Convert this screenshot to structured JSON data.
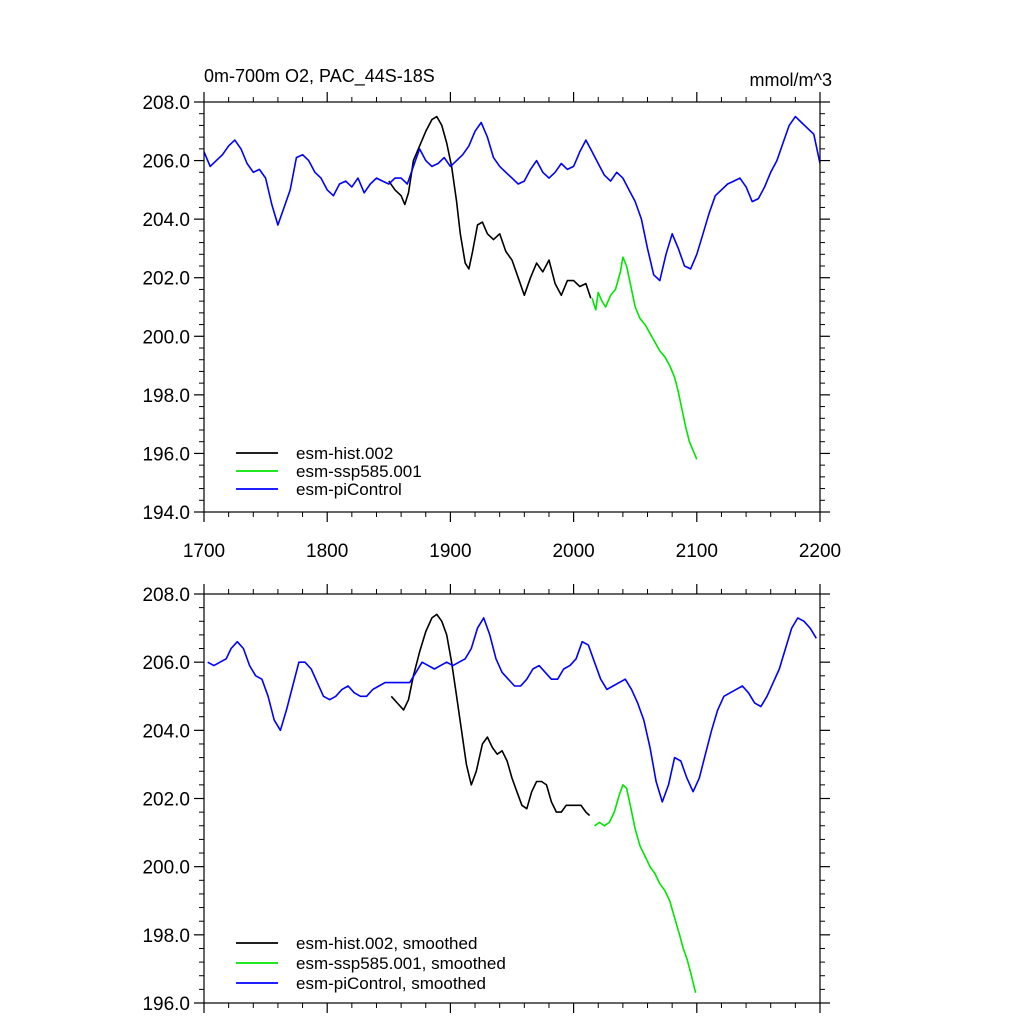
{
  "chart_data": [
    {
      "type": "line",
      "title": "0m-700m O2, PAC_44S-18S",
      "units": "mmol/m^3",
      "xlim": [
        1700,
        2200
      ],
      "ylim": [
        194,
        208
      ],
      "xticks": [
        1700,
        1800,
        1900,
        2000,
        2100,
        2200
      ],
      "xtick_labels": [
        "1700",
        "1800",
        "1900",
        "2000",
        "2100",
        "2200"
      ],
      "yticks": [
        194,
        196,
        198,
        200,
        202,
        204,
        206,
        208
      ],
      "ytick_labels": [
        "194.0",
        "196.0",
        "198.0",
        "200.0",
        "202.0",
        "204.0",
        "206.0",
        "208.0"
      ],
      "legend_position": "bottom-left",
      "series": [
        {
          "name": "esm-hist.002",
          "color": "#000000",
          "x": [
            1850,
            1855,
            1860,
            1863,
            1866,
            1870,
            1875,
            1880,
            1885,
            1889,
            1893,
            1897,
            1901,
            1905,
            1908,
            1912,
            1915,
            1918,
            1922,
            1926,
            1930,
            1935,
            1940,
            1945,
            1950,
            1955,
            1960,
            1965,
            1970,
            1975,
            1980,
            1985,
            1990,
            1995,
            2000,
            2005,
            2010,
            2014
          ],
          "y": [
            205.3,
            205.0,
            204.8,
            204.5,
            204.9,
            206.0,
            206.5,
            207.0,
            207.4,
            207.5,
            207.2,
            206.6,
            205.8,
            204.6,
            203.5,
            202.5,
            202.3,
            202.9,
            203.8,
            203.9,
            203.5,
            203.3,
            203.5,
            202.9,
            202.6,
            202.0,
            201.4,
            202.0,
            202.5,
            202.2,
            202.6,
            201.8,
            201.4,
            201.9,
            201.9,
            201.7,
            201.8,
            201.3
          ]
        },
        {
          "name": "esm-ssp585.001",
          "color": "#00e600",
          "x": [
            2015,
            2018,
            2020,
            2023,
            2026,
            2030,
            2034,
            2038,
            2040,
            2043,
            2046,
            2050,
            2054,
            2058,
            2062,
            2066,
            2070,
            2074,
            2078,
            2082,
            2085,
            2088,
            2091,
            2094,
            2097,
            2100
          ],
          "y": [
            201.3,
            200.9,
            201.5,
            201.2,
            201.0,
            201.4,
            201.6,
            202.2,
            202.7,
            202.4,
            201.8,
            201.0,
            200.6,
            200.4,
            200.1,
            199.8,
            199.5,
            199.3,
            199.0,
            198.6,
            198.1,
            197.5,
            196.9,
            196.4,
            196.1,
            195.8
          ]
        },
        {
          "name": "esm-piControl",
          "color": "#0000ff",
          "x": [
            1700,
            1705,
            1710,
            1715,
            1720,
            1725,
            1730,
            1735,
            1740,
            1745,
            1750,
            1755,
            1760,
            1765,
            1770,
            1775,
            1780,
            1785,
            1790,
            1795,
            1800,
            1805,
            1810,
            1815,
            1820,
            1825,
            1830,
            1835,
            1840,
            1845,
            1850,
            1855,
            1860,
            1865,
            1870,
            1875,
            1880,
            1885,
            1890,
            1895,
            1900,
            1905,
            1910,
            1915,
            1920,
            1925,
            1930,
            1935,
            1940,
            1945,
            1950,
            1955,
            1960,
            1965,
            1970,
            1975,
            1980,
            1985,
            1990,
            1995,
            2000,
            2005,
            2010,
            2015,
            2020,
            2025,
            2030,
            2035,
            2040,
            2045,
            2050,
            2055,
            2060,
            2065,
            2070,
            2075,
            2080,
            2085,
            2090,
            2095,
            2100,
            2105,
            2110,
            2115,
            2120,
            2125,
            2130,
            2135,
            2140,
            2145,
            2150,
            2155,
            2160,
            2165,
            2170,
            2175,
            2180,
            2185,
            2190,
            2195,
            2200
          ],
          "y": [
            206.3,
            205.8,
            206.0,
            206.2,
            206.5,
            206.7,
            206.4,
            205.9,
            205.6,
            205.7,
            205.4,
            204.5,
            203.8,
            204.4,
            205.0,
            206.1,
            206.2,
            206.0,
            205.6,
            205.4,
            205.0,
            204.8,
            205.2,
            205.3,
            205.1,
            205.4,
            204.9,
            205.2,
            205.4,
            205.3,
            205.2,
            205.4,
            205.4,
            205.2,
            205.8,
            206.4,
            206.0,
            205.8,
            205.9,
            206.1,
            205.8,
            206.0,
            206.2,
            206.5,
            207.0,
            207.3,
            206.8,
            206.1,
            205.8,
            205.6,
            205.4,
            205.2,
            205.3,
            205.7,
            206.0,
            205.6,
            205.4,
            205.6,
            205.9,
            205.7,
            205.8,
            206.3,
            206.7,
            206.3,
            205.9,
            205.5,
            205.3,
            205.6,
            205.4,
            205.0,
            204.6,
            204.0,
            203.0,
            202.1,
            201.9,
            202.8,
            203.5,
            203.0,
            202.4,
            202.3,
            202.8,
            203.5,
            204.2,
            204.8,
            205.0,
            205.2,
            205.3,
            205.4,
            205.1,
            204.6,
            204.7,
            205.1,
            205.6,
            206.0,
            206.6,
            207.2,
            207.5,
            207.3,
            207.1,
            206.9,
            205.9
          ]
        }
      ]
    },
    {
      "type": "line",
      "xlim": [
        1700,
        2200
      ],
      "ylim": [
        196,
        208
      ],
      "xticks": [
        1700,
        1800,
        1900,
        2000,
        2100,
        2200
      ],
      "yticks": [
        196,
        198,
        200,
        202,
        204,
        206,
        208
      ],
      "ytick_labels": [
        "196.0",
        "198.0",
        "200.0",
        "202.0",
        "204.0",
        "206.0",
        "208.0"
      ],
      "legend_position": "bottom-left",
      "series": [
        {
          "name": "esm-hist.002, smoothed",
          "color": "#000000",
          "x": [
            1852,
            1857,
            1862,
            1866,
            1870,
            1875,
            1880,
            1885,
            1889,
            1893,
            1897,
            1901,
            1905,
            1909,
            1913,
            1917,
            1921,
            1926,
            1930,
            1934,
            1938,
            1942,
            1946,
            1950,
            1954,
            1958,
            1962,
            1966,
            1970,
            1974,
            1978,
            1982,
            1986,
            1990,
            1994,
            1998,
            2002,
            2006,
            2010,
            2013
          ],
          "y": [
            205.0,
            204.8,
            204.6,
            204.9,
            205.6,
            206.3,
            206.9,
            207.3,
            207.4,
            207.2,
            206.8,
            206.0,
            205.0,
            204.0,
            203.0,
            202.4,
            202.8,
            203.6,
            203.8,
            203.5,
            203.3,
            203.4,
            203.1,
            202.6,
            202.2,
            201.8,
            201.7,
            202.2,
            202.5,
            202.5,
            202.4,
            201.9,
            201.6,
            201.6,
            201.8,
            201.8,
            201.8,
            201.8,
            201.6,
            201.5
          ]
        },
        {
          "name": "esm-ssp585.001, smoothed",
          "color": "#00e600",
          "x": [
            2017,
            2021,
            2025,
            2029,
            2033,
            2037,
            2040,
            2043,
            2046,
            2050,
            2054,
            2058,
            2062,
            2066,
            2070,
            2074,
            2078,
            2082,
            2086,
            2089,
            2092,
            2095,
            2097,
            2099
          ],
          "y": [
            201.2,
            201.3,
            201.2,
            201.3,
            201.6,
            202.1,
            202.4,
            202.3,
            201.8,
            201.1,
            200.6,
            200.3,
            200.0,
            199.8,
            199.5,
            199.3,
            199.0,
            198.5,
            198.0,
            197.6,
            197.3,
            196.9,
            196.6,
            196.3
          ]
        },
        {
          "name": "esm-piControl, smoothed",
          "color": "#0000ff",
          "x": [
            1703,
            1708,
            1713,
            1718,
            1722,
            1727,
            1732,
            1737,
            1742,
            1747,
            1752,
            1757,
            1762,
            1767,
            1772,
            1777,
            1782,
            1787,
            1792,
            1797,
            1802,
            1807,
            1812,
            1817,
            1822,
            1827,
            1832,
            1837,
            1842,
            1847,
            1852,
            1857,
            1862,
            1867,
            1872,
            1877,
            1882,
            1887,
            1892,
            1897,
            1902,
            1907,
            1912,
            1917,
            1922,
            1927,
            1932,
            1937,
            1942,
            1947,
            1952,
            1957,
            1962,
            1967,
            1972,
            1977,
            1982,
            1987,
            1992,
            1997,
            2002,
            2007,
            2012,
            2017,
            2022,
            2027,
            2032,
            2037,
            2042,
            2047,
            2052,
            2057,
            2062,
            2067,
            2072,
            2077,
            2082,
            2087,
            2092,
            2097,
            2102,
            2107,
            2112,
            2117,
            2122,
            2127,
            2132,
            2137,
            2142,
            2147,
            2152,
            2157,
            2162,
            2167,
            2172,
            2177,
            2182,
            2187,
            2192,
            2197
          ],
          "y": [
            206.0,
            205.9,
            206.0,
            206.1,
            206.4,
            206.6,
            206.4,
            205.9,
            205.6,
            205.5,
            205.0,
            204.3,
            204.0,
            204.6,
            205.3,
            206.0,
            206.0,
            205.8,
            205.4,
            205.0,
            204.9,
            205.0,
            205.2,
            205.3,
            205.1,
            205.0,
            205.0,
            205.2,
            205.3,
            205.4,
            205.4,
            205.4,
            205.4,
            205.4,
            205.7,
            206.0,
            205.9,
            205.8,
            205.9,
            206.0,
            205.9,
            206.0,
            206.1,
            206.4,
            207.0,
            207.3,
            206.8,
            206.1,
            205.7,
            205.5,
            205.3,
            205.3,
            205.5,
            205.8,
            205.9,
            205.7,
            205.5,
            205.5,
            205.8,
            205.9,
            206.1,
            206.6,
            206.5,
            206.0,
            205.5,
            205.2,
            205.3,
            205.4,
            205.5,
            205.2,
            204.8,
            204.3,
            203.5,
            202.5,
            201.9,
            202.4,
            203.2,
            203.1,
            202.6,
            202.2,
            202.6,
            203.3,
            204.0,
            204.6,
            205.0,
            205.1,
            205.2,
            205.3,
            205.1,
            204.8,
            204.7,
            205.0,
            205.4,
            205.8,
            206.4,
            207.0,
            207.3,
            207.2,
            207.0,
            206.7
          ]
        }
      ]
    }
  ]
}
